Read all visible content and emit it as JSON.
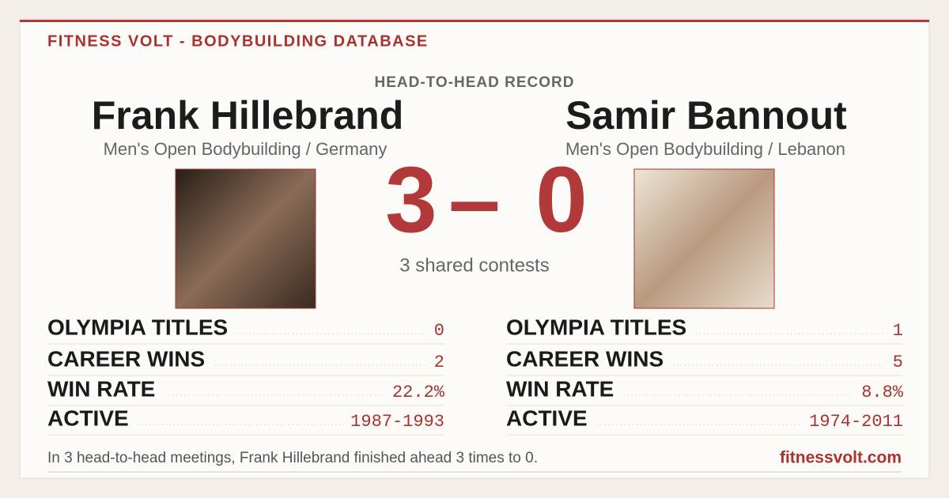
{
  "header": {
    "brand": "FITNESS VOLT - BODYBUILDING DATABASE",
    "subtitle": "HEAD-TO-HEAD RECORD"
  },
  "left": {
    "name": "Frank Hillebrand",
    "division": "Men's Open Bodybuilding / Germany",
    "stats": [
      {
        "label": "OLYMPIA TITLES",
        "value": "0"
      },
      {
        "label": "CAREER WINS",
        "value": "2"
      },
      {
        "label": "WIN RATE",
        "value": "22.2%"
      },
      {
        "label": "ACTIVE",
        "value": "1987-1993"
      }
    ]
  },
  "right": {
    "name": "Samir Bannout",
    "division": "Men's Open Bodybuilding / Lebanon",
    "stats": [
      {
        "label": "OLYMPIA TITLES",
        "value": "1"
      },
      {
        "label": "CAREER WINS",
        "value": "5"
      },
      {
        "label": "WIN RATE",
        "value": "8.8%"
      },
      {
        "label": "ACTIVE",
        "value": "1974-2011"
      }
    ]
  },
  "score": {
    "left": 3,
    "separator": "–",
    "right": 0,
    "caption": "3 shared contests"
  },
  "footer": {
    "summary": "In 3 head-to-head meetings, Frank Hillebrand finished ahead 3 times to 0.",
    "site": "fitnessvolt.com"
  }
}
